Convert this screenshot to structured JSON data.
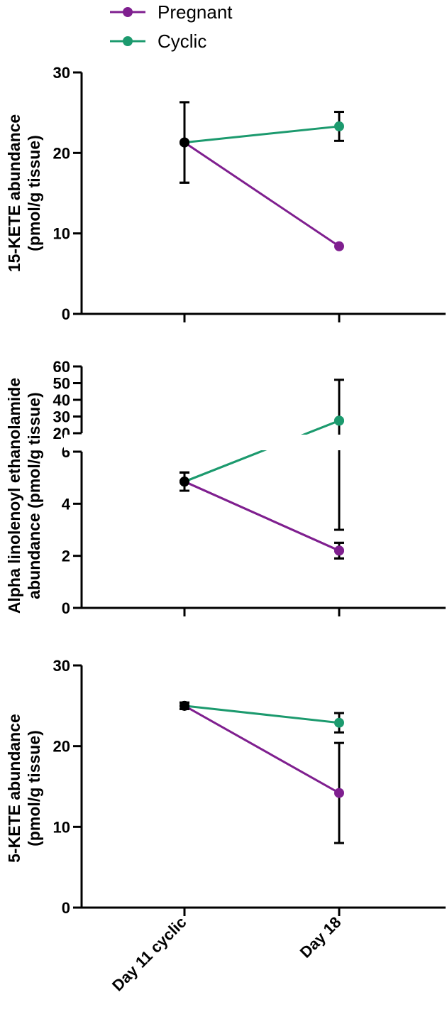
{
  "legend": {
    "items": [
      {
        "label": "Pregnant",
        "color": "#7f1f8f"
      },
      {
        "label": "Cyclic",
        "color": "#1c9a6e"
      }
    ]
  },
  "chart_data": [
    {
      "type": "line",
      "x": [
        "Day 11 cyclic",
        "Day 18"
      ],
      "ylabel_lines": [
        "15-KETE abundance",
        "(pmol/g tissue)"
      ],
      "ylim": [
        0,
        30
      ],
      "yticks": [
        0,
        10,
        20,
        30
      ],
      "series": [
        {
          "name": "Pregnant",
          "values": [
            21.3,
            8.4
          ],
          "err": [
            5.0,
            0
          ]
        },
        {
          "name": "Cyclic",
          "values": [
            21.3,
            23.3
          ],
          "err": [
            5.0,
            1.8
          ]
        }
      ]
    },
    {
      "type": "line",
      "x": [
        "Day 11 cyclic",
        "Day 18"
      ],
      "ylabel_lines": [
        "Alpha linolenoyl ethanolamide",
        "abundance (pmol/g tissue)"
      ],
      "ylim": [
        0,
        60
      ],
      "axis_break": [
        6,
        20
      ],
      "yticks_lower": [
        0,
        2,
        4,
        6
      ],
      "yticks_upper": [
        20,
        30,
        40,
        50,
        60
      ],
      "series": [
        {
          "name": "Pregnant",
          "values": [
            4.85,
            2.2
          ],
          "err": [
            0.35,
            0.3
          ]
        },
        {
          "name": "Cyclic",
          "values": [
            4.85,
            27.5
          ],
          "err": [
            0.35,
            24.5
          ]
        }
      ]
    },
    {
      "type": "line",
      "x": [
        "Day 11 cyclic",
        "Day 18"
      ],
      "xticklabels": [
        "Day 11 cyclic",
        "Day 18"
      ],
      "ylabel_lines": [
        "5-KETE abundance",
        "(pmol/g tissue)"
      ],
      "ylim": [
        0,
        30
      ],
      "yticks": [
        0,
        10,
        20,
        30
      ],
      "series": [
        {
          "name": "Pregnant",
          "values": [
            25.0,
            14.2
          ],
          "err": [
            0.4,
            6.2
          ]
        },
        {
          "name": "Cyclic",
          "values": [
            25.0,
            22.9
          ],
          "err": [
            0.4,
            1.2
          ]
        }
      ]
    }
  ]
}
